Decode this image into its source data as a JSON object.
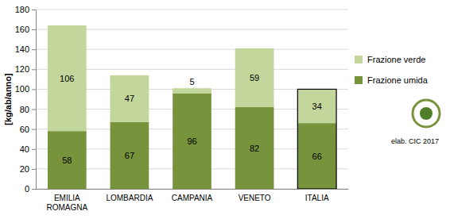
{
  "chart_data": {
    "type": "bar",
    "stacked": true,
    "y_label": "[kg/ab/anno]",
    "categories": [
      "EMILIA ROMAGNA",
      "LOMBARDIA",
      "CAMPANIA",
      "VENETO",
      "ITALIA"
    ],
    "series": [
      {
        "name": "Frazione umida",
        "color": "#77933c",
        "values": [
          58,
          67,
          96,
          82,
          66
        ]
      },
      {
        "name": "Frazione verde",
        "color": "#c3d69b",
        "values": [
          106,
          47,
          5,
          59,
          34
        ]
      }
    ],
    "ylim": [
      0,
      180
    ],
    "yticks": [
      0,
      20,
      40,
      60,
      80,
      100,
      120,
      140,
      160,
      180
    ],
    "grid": true,
    "legend": "right",
    "data_labels": true,
    "annotation": "elab. CIC 2017"
  }
}
